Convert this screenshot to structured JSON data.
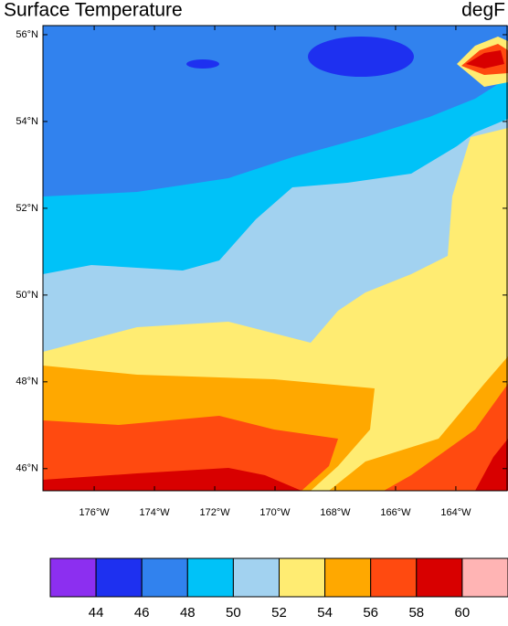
{
  "header": {
    "title": "Surface Temperature",
    "units": "degF"
  },
  "map": {
    "lat_lim": [
      45.49,
      56.21
    ],
    "lon_lim": [
      -177.7,
      -162.27
    ],
    "lat_ticks": [
      {
        "value": 46,
        "label": "46°N"
      },
      {
        "value": 48,
        "label": "48°N"
      },
      {
        "value": 50,
        "label": "50°N"
      },
      {
        "value": 52,
        "label": "52°N"
      },
      {
        "value": 54,
        "label": "54°N"
      },
      {
        "value": 56,
        "label": "56°N"
      }
    ],
    "lon_ticks": [
      {
        "value": -176,
        "label": "176°W"
      },
      {
        "value": -174,
        "label": "174°W"
      },
      {
        "value": -172,
        "label": "172°W"
      },
      {
        "value": -170,
        "label": "170°W"
      },
      {
        "value": -168,
        "label": "168°W"
      },
      {
        "value": -166,
        "label": "166°W"
      },
      {
        "value": -164,
        "label": "164°W"
      }
    ]
  },
  "colorbar": {
    "levels": [
      44,
      46,
      48,
      50,
      52,
      54,
      56,
      58,
      60
    ],
    "colors": [
      "#8c2ff0",
      "#1e30f0",
      "#3182ee",
      "#00c2f8",
      "#a2d2f0",
      "#ffec72",
      "#ffa800",
      "#ff4a10",
      "#d80000",
      "#ffb4b4"
    ]
  }
}
